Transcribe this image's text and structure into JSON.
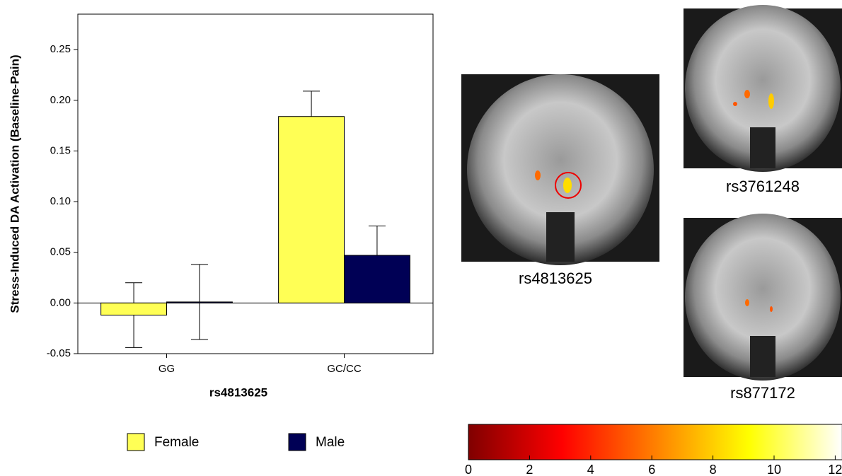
{
  "chart_data": [
    {
      "type": "bar",
      "y_label": "Stress-Induced DA Activation (Baseline-Pain)",
      "x_label": "rs4813625",
      "categories": [
        "GG",
        "GC/CC"
      ],
      "series": [
        {
          "name": "Female",
          "color": "#ffff55",
          "values": [
            -0.012,
            0.184
          ],
          "errors": [
            0.032,
            0.025
          ]
        },
        {
          "name": "Male",
          "color": "#000055",
          "values": [
            0.001,
            0.047
          ],
          "errors": [
            0.037,
            0.029
          ]
        }
      ],
      "ylim": [
        -0.05,
        0.285
      ],
      "yticks": [
        {
          "value": -0.05,
          "label": "-0.05"
        },
        {
          "value": 0,
          "label": "0.00"
        },
        {
          "value": 0.05,
          "label": "0.05"
        },
        {
          "value": 0.1,
          "label": "0.10"
        },
        {
          "value": 0.15,
          "label": "0.15"
        },
        {
          "value": 0.2,
          "label": "0.20"
        },
        {
          "value": 0.25,
          "label": "0.25"
        }
      ],
      "legend": "bottom"
    },
    {
      "type": "colorbar",
      "xlim": [
        0,
        12.23
      ],
      "xticks": [
        0,
        2,
        4,
        6,
        8,
        10,
        12
      ],
      "colors": [
        "#800000",
        "#ff0000",
        "#ff8000",
        "#ffff00",
        "#ffffff"
      ]
    }
  ],
  "images": [
    {
      "label": "rs4813625"
    },
    {
      "label": "rs3761248"
    },
    {
      "label": "rs877172"
    }
  ]
}
